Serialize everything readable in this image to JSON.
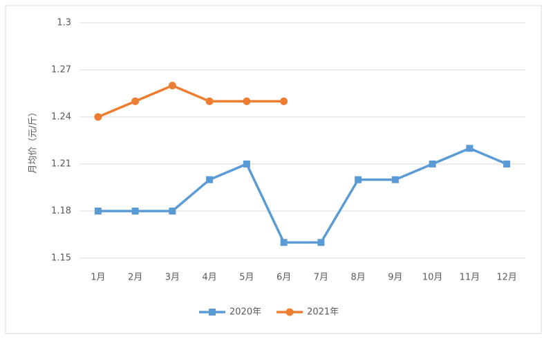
{
  "chart_data": {
    "type": "line",
    "ylabel": "月均价（元/斤）",
    "categories": [
      "1月",
      "2月",
      "3月",
      "4月",
      "5月",
      "6月",
      "7月",
      "8月",
      "9月",
      "10月",
      "11月",
      "12月"
    ],
    "series": [
      {
        "name": "2020年",
        "color": "#5b9bd5",
        "marker": "square",
        "values": [
          1.18,
          1.18,
          1.18,
          1.2,
          1.21,
          1.16,
          1.16,
          1.2,
          1.2,
          1.21,
          1.22,
          1.21
        ]
      },
      {
        "name": "2021年",
        "color": "#ed7d31",
        "marker": "circle",
        "values": [
          1.24,
          1.25,
          1.26,
          1.25,
          1.25,
          1.25,
          null,
          null,
          null,
          null,
          null,
          null
        ]
      }
    ],
    "ylim": [
      1.15,
      1.3
    ],
    "yticks": [
      1.15,
      1.18,
      1.21,
      1.24,
      1.27,
      1.3
    ],
    "grid": true,
    "legend": "bottom"
  }
}
